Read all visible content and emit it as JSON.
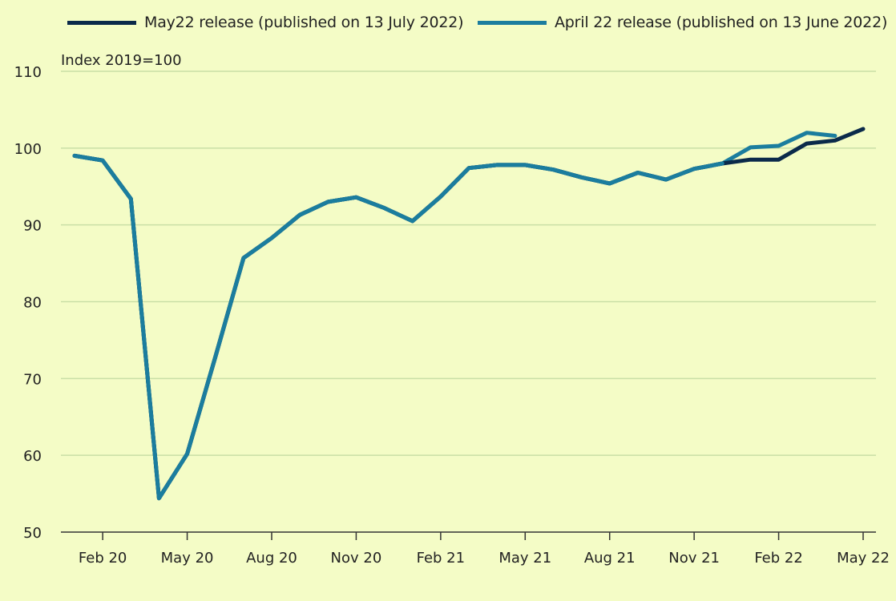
{
  "legend": {
    "series0": "May22 release (published on 13 July 2022)",
    "series1": "April 22 release (published on 13 June 2022)"
  },
  "chart_data": {
    "type": "line",
    "ylabel": "Index 2019=100",
    "ylim": [
      50,
      110
    ],
    "yticks": [
      50,
      60,
      70,
      80,
      90,
      100,
      110
    ],
    "grid": true,
    "legend_position": "top",
    "x": [
      "Jan 20",
      "Feb 20",
      "Mar 20",
      "Apr 20",
      "May 20",
      "Jun 20",
      "Jul 20",
      "Aug 20",
      "Sep 20",
      "Oct 20",
      "Nov 20",
      "Dec 20",
      "Jan 21",
      "Feb 21",
      "Mar 21",
      "Apr 21",
      "May 21",
      "Jun 21",
      "Jul 21",
      "Aug 21",
      "Sep 21",
      "Oct 21",
      "Nov 21",
      "Dec 21",
      "Jan 22",
      "Feb 22",
      "Mar 22",
      "Apr 22",
      "May 22"
    ],
    "xtick_labels": [
      "Feb 20",
      "May 20",
      "Aug 20",
      "Nov 20",
      "Feb 21",
      "May 21",
      "Aug 21",
      "Nov 21",
      "Feb 22",
      "May 22"
    ],
    "series": [
      {
        "name": "May22 release (published on 13 July 2022)",
        "color": "#0b2a4a",
        "values": [
          99.0,
          98.4,
          93.4,
          54.4,
          60.2,
          72.8,
          85.7,
          88.3,
          91.3,
          93.0,
          93.6,
          92.2,
          90.5,
          93.7,
          97.4,
          97.8,
          97.8,
          97.2,
          96.2,
          95.4,
          96.8,
          95.9,
          97.3,
          98.0,
          98.5,
          98.5,
          100.6,
          101.0,
          102.5
        ]
      },
      {
        "name": "April 22 release (published on 13 June 2022)",
        "color": "#1b7d9e",
        "values": [
          99.0,
          98.4,
          93.4,
          54.4,
          60.2,
          72.8,
          85.7,
          88.3,
          91.3,
          93.0,
          93.6,
          92.2,
          90.5,
          93.7,
          97.4,
          97.8,
          97.8,
          97.2,
          96.2,
          95.4,
          96.8,
          95.9,
          97.3,
          98.0,
          100.1,
          100.3,
          102.0,
          101.6,
          null
        ]
      }
    ]
  }
}
